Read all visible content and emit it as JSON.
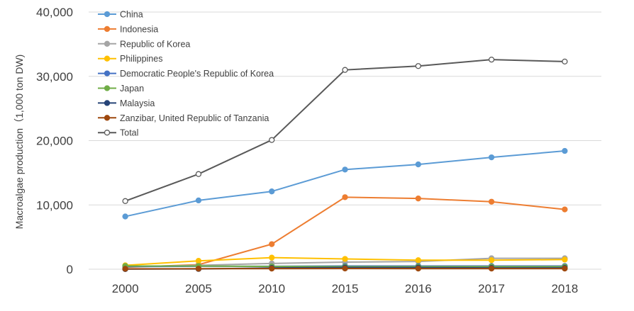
{
  "chart_data": {
    "type": "line",
    "title": "",
    "xlabel": "",
    "ylabel": "Macroalgae production（1,000 ton DW)",
    "categories": [
      "2000",
      "2005",
      "2010",
      "2015",
      "2016",
      "2017",
      "2018"
    ],
    "ylim": [
      0,
      40000
    ],
    "yticks": [
      0,
      10000,
      20000,
      30000,
      40000
    ],
    "ytick_labels": [
      "0",
      "10,000",
      "20,000",
      "30,000",
      "40,000"
    ],
    "grid": "horizontal",
    "legend_position": "top-left",
    "series": [
      {
        "name": "China",
        "color": "#5b9bd5",
        "marker": "filled",
        "values": [
          8200,
          10700,
          12100,
          15500,
          16300,
          17400,
          18400
        ]
      },
      {
        "name": "Indonesia",
        "color": "#ed7d31",
        "marker": "filled",
        "values": [
          300,
          700,
          3900,
          11200,
          11000,
          10500,
          9300
        ]
      },
      {
        "name": "Republic of Korea",
        "color": "#a5a5a5",
        "marker": "filled",
        "values": [
          400,
          600,
          900,
          1100,
          1200,
          1700,
          1700
        ]
      },
      {
        "name": "Philippines",
        "color": "#ffc000",
        "marker": "filled",
        "values": [
          600,
          1300,
          1800,
          1600,
          1400,
          1400,
          1500
        ]
      },
      {
        "name": "Democratic People's Republic of Korea",
        "color": "#4472c4",
        "marker": "filled",
        "values": [
          400,
          450,
          450,
          500,
          500,
          500,
          500
        ]
      },
      {
        "name": "Japan",
        "color": "#70ad47",
        "marker": "filled",
        "values": [
          500,
          500,
          430,
          400,
          400,
          400,
          400
        ]
      },
      {
        "name": "Malaysia",
        "color": "#264478",
        "marker": "filled",
        "values": [
          20,
          40,
          200,
          260,
          250,
          200,
          200
        ]
      },
      {
        "name": "Zanzibar, United Republic of Tanzania",
        "color": "#9e480e",
        "marker": "filled",
        "values": [
          60,
          80,
          100,
          110,
          100,
          100,
          100
        ]
      },
      {
        "name": "Total",
        "color": "#595959",
        "marker": "open",
        "values": [
          10600,
          14800,
          20100,
          31000,
          31600,
          32600,
          32300
        ]
      }
    ]
  }
}
